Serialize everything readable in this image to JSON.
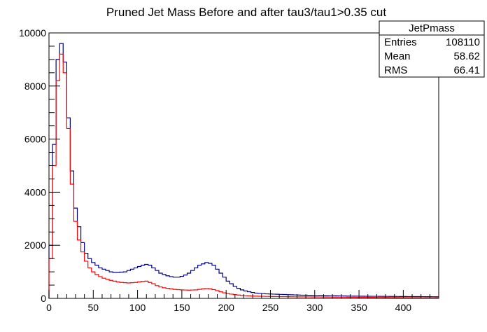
{
  "chart_data": {
    "type": "histogram",
    "title": "Pruned Jet Mass Before and after tau3/tau1>0.35 cut",
    "xlabel": "",
    "ylabel": "",
    "xlim": [
      0,
      440
    ],
    "ylim": [
      0,
      10000
    ],
    "bin_width": 4,
    "x_ticks": [
      0,
      50,
      100,
      150,
      200,
      250,
      300,
      350,
      400
    ],
    "y_ticks": [
      0,
      2000,
      4000,
      6000,
      8000,
      10000
    ],
    "grid": false,
    "legend": "none",
    "stats_box": {
      "placement": "top-right",
      "title": "JetPmass",
      "rows": [
        {
          "label": "Entries",
          "value": "108110"
        },
        {
          "label": "Mean",
          "value": "58.62"
        },
        {
          "label": "RMS",
          "value": "66.41"
        }
      ]
    },
    "series": [
      {
        "color": "#00007f",
        "values": [
          2000,
          5800,
          9000,
          9600,
          8900,
          6800,
          4800,
          3400,
          2700,
          2100,
          1700,
          1500,
          1350,
          1250,
          1150,
          1100,
          1050,
          1000,
          980,
          980,
          990,
          1000,
          1050,
          1100,
          1150,
          1200,
          1250,
          1280,
          1250,
          1150,
          1050,
          950,
          900,
          850,
          820,
          800,
          800,
          830,
          880,
          950,
          1050,
          1150,
          1250,
          1300,
          1350,
          1320,
          1250,
          1100,
          950,
          800,
          650,
          550,
          450,
          380,
          320,
          280,
          250,
          220,
          200,
          190,
          180,
          170,
          165,
          160,
          155,
          150,
          145,
          140,
          135,
          130,
          125,
          120,
          118,
          115,
          112,
          110,
          108,
          105,
          102,
          100,
          98,
          96,
          94,
          92,
          90,
          88,
          86,
          84,
          82,
          80,
          79,
          78,
          77,
          76,
          75,
          74,
          73,
          72,
          71,
          70,
          70,
          68,
          67,
          66,
          65,
          64,
          63,
          62,
          61,
          60
        ]
      },
      {
        "color": "#ff0000",
        "values": [
          1500,
          5000,
          8200,
          9200,
          8500,
          6400,
          4300,
          2900,
          2200,
          1750,
          1400,
          1150,
          1000,
          900,
          820,
          760,
          720,
          680,
          650,
          620,
          600,
          590,
          580,
          590,
          600,
          620,
          640,
          650,
          600,
          550,
          480,
          430,
          400,
          380,
          360,
          340,
          330,
          320,
          315,
          310,
          315,
          320,
          340,
          360,
          370,
          360,
          330,
          290,
          250,
          210,
          180,
          160,
          140,
          125,
          110,
          100,
          95,
          90,
          85,
          80,
          77,
          74,
          72,
          70,
          68,
          66,
          64,
          62,
          60,
          58,
          57,
          56,
          55,
          54,
          53,
          52,
          51,
          50,
          49,
          48,
          47,
          46,
          45,
          44,
          43,
          42,
          41,
          40,
          39,
          38,
          37,
          36,
          35,
          34,
          33,
          32,
          31,
          30,
          29,
          28,
          27,
          26,
          25,
          24,
          23,
          22,
          21,
          20,
          20,
          20
        ]
      }
    ]
  }
}
